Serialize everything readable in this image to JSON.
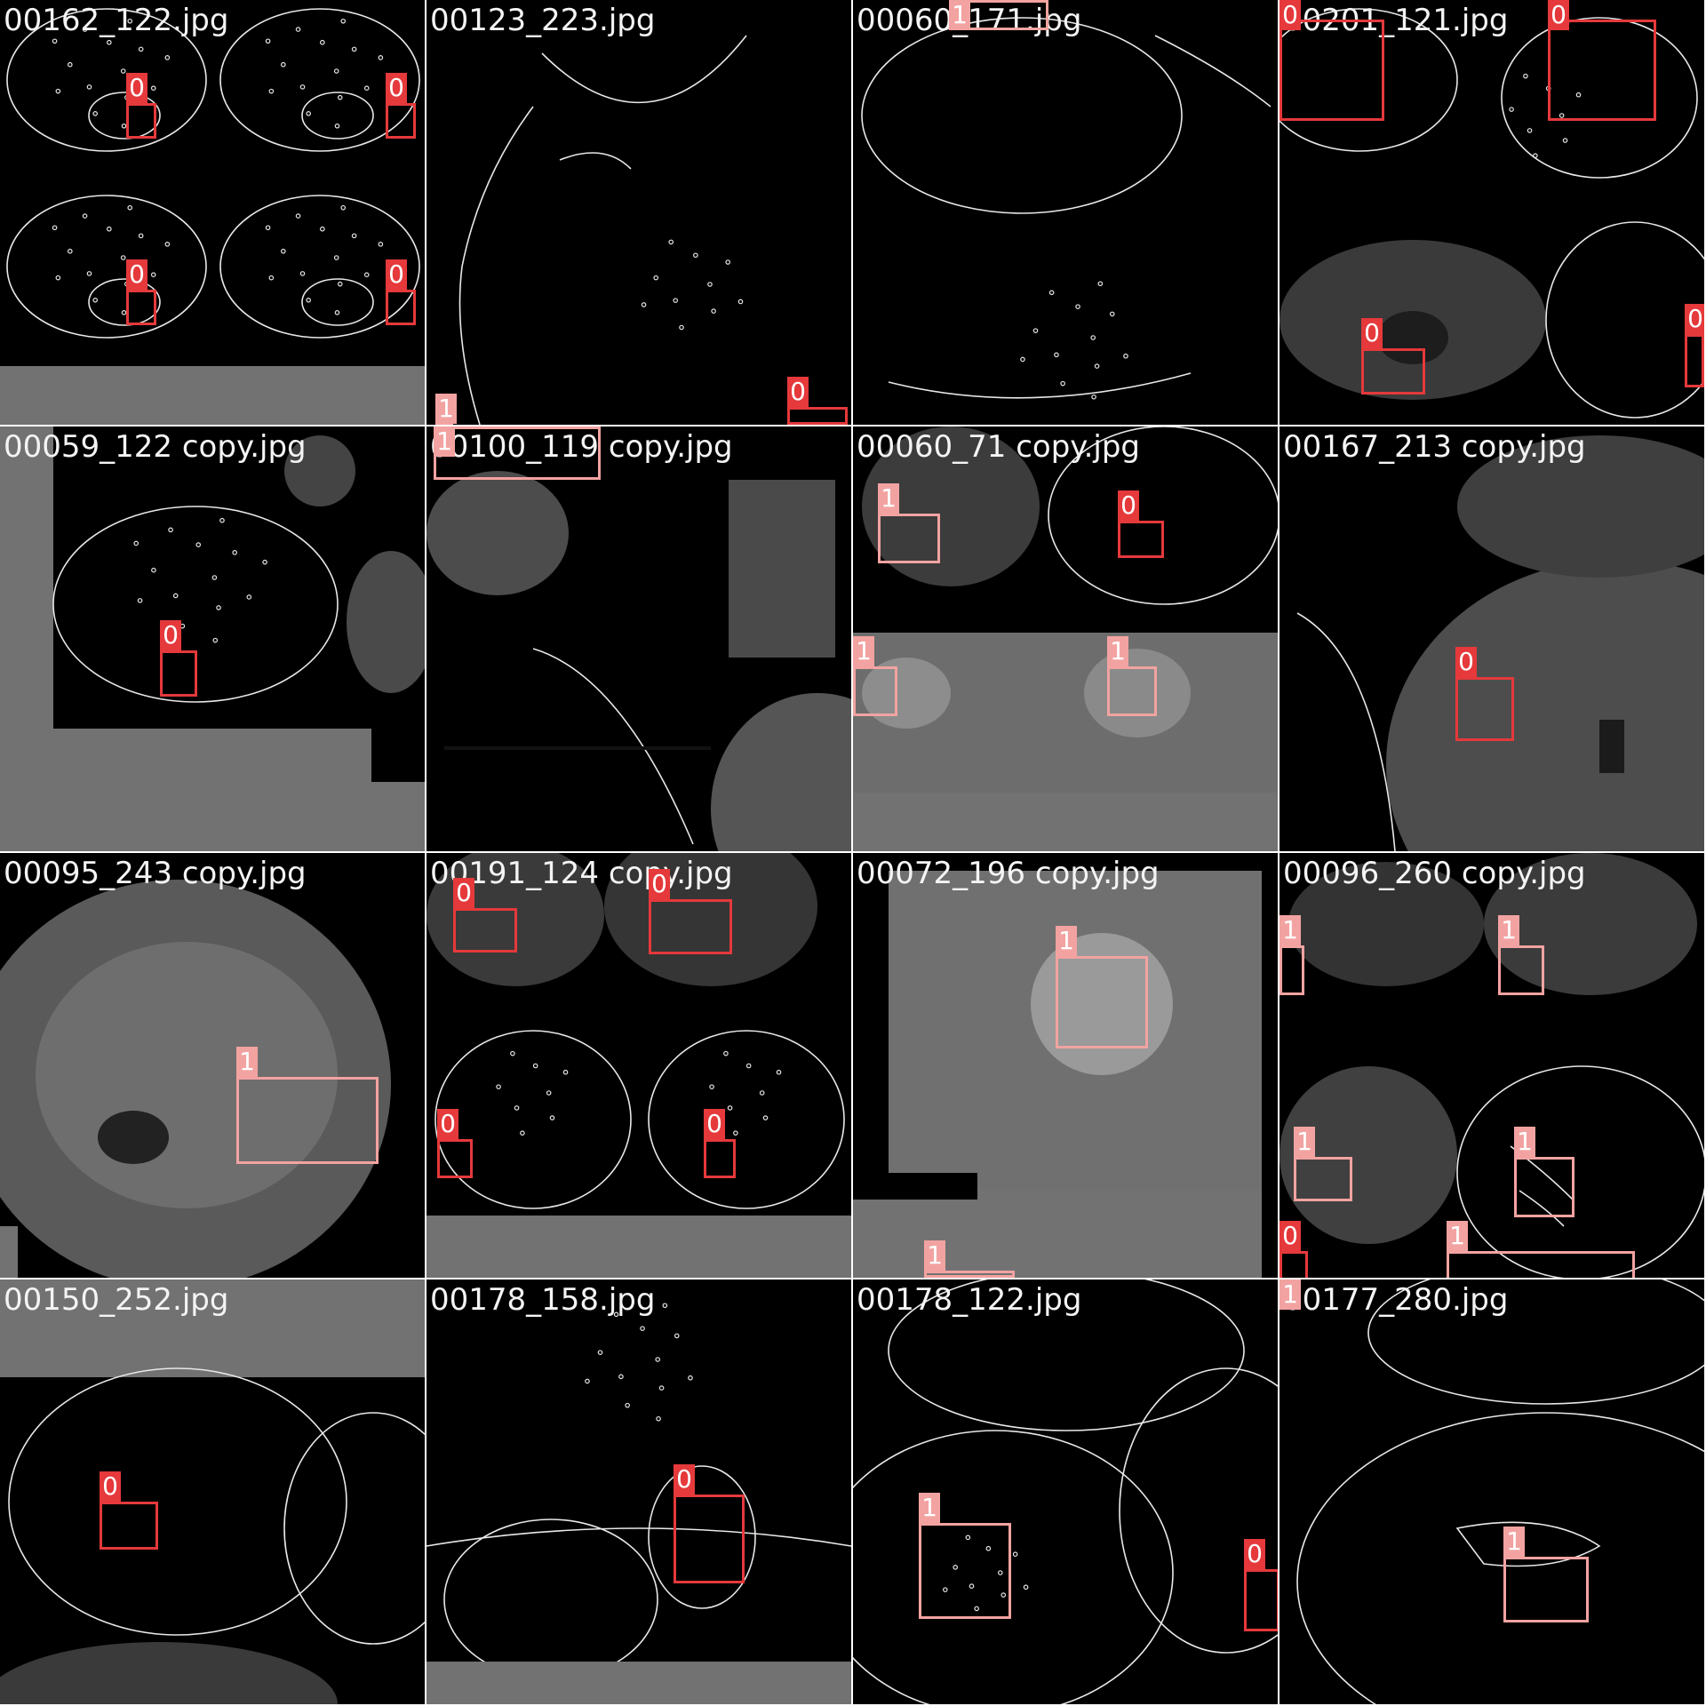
{
  "colors": {
    "class0": "#e5393b",
    "class1": "#f2a3a1",
    "gridline": "#ffffff",
    "pad": "#727272"
  },
  "tiles": [
    {
      "label": "00162_122.jpg",
      "kind": "edge-brain-quad",
      "boxes": [
        {
          "cls": "0"
        },
        {
          "cls": "0"
        },
        {
          "cls": "0"
        },
        {
          "cls": "0"
        }
      ]
    },
    {
      "label": "00123_223.jpg",
      "kind": "edge-brain-sagittal",
      "boxes": [
        {
          "cls": "1"
        },
        {
          "cls": "0"
        }
      ]
    },
    {
      "label": "00060_171.jpg",
      "kind": "edge-brain-top",
      "boxes": [
        {
          "cls": "1"
        }
      ]
    },
    {
      "label": "00201_121.jpg",
      "kind": "mixed",
      "boxes": [
        {
          "cls": "0"
        },
        {
          "cls": "0"
        },
        {
          "cls": "0"
        },
        {
          "cls": "0"
        }
      ]
    },
    {
      "label": "00059_122 copy.jpg",
      "kind": "edge-brain-axial",
      "boxes": [
        {
          "cls": "0"
        }
      ]
    },
    {
      "label": "00100_119 copy.jpg",
      "kind": "gray-blur",
      "boxes": [
        {
          "cls": "1"
        }
      ]
    },
    {
      "label": "00060_71 copy.jpg",
      "kind": "gray-mixed",
      "boxes": [
        {
          "cls": "1"
        },
        {
          "cls": "0"
        },
        {
          "cls": "1"
        },
        {
          "cls": "1"
        }
      ]
    },
    {
      "label": "00167_213 copy.jpg",
      "kind": "gray-sagittal",
      "boxes": [
        {
          "cls": "0"
        }
      ]
    },
    {
      "label": "00095_243 copy.jpg",
      "kind": "gray-sagittal-big",
      "boxes": [
        {
          "cls": "1"
        }
      ]
    },
    {
      "label": "00191_124 copy.jpg",
      "kind": "mixed-quad",
      "boxes": [
        {
          "cls": "0"
        },
        {
          "cls": "0"
        },
        {
          "cls": "0"
        },
        {
          "cls": "0"
        }
      ]
    },
    {
      "label": "00072_196 copy.jpg",
      "kind": "gray-coronal",
      "boxes": [
        {
          "cls": "1"
        },
        {
          "cls": "1"
        }
      ]
    },
    {
      "label": "00096_260 copy.jpg",
      "kind": "mixed-quad2",
      "boxes": [
        {
          "cls": "1"
        },
        {
          "cls": "1"
        },
        {
          "cls": "1"
        },
        {
          "cls": "1"
        },
        {
          "cls": "0"
        },
        {
          "cls": "1"
        }
      ]
    },
    {
      "label": "00150_252.jpg",
      "kind": "edge-coronal",
      "boxes": [
        {
          "cls": "0"
        }
      ]
    },
    {
      "label": "00178_158.jpg",
      "kind": "edge-axial-low",
      "boxes": [
        {
          "cls": "0"
        }
      ]
    },
    {
      "label": "00178_122.jpg",
      "kind": "edge-sagittal",
      "boxes": [
        {
          "cls": "1"
        },
        {
          "cls": "0"
        }
      ]
    },
    {
      "label": "00177_280.jpg",
      "kind": "edge-sagittal2",
      "boxes": [
        {
          "cls": "1"
        },
        {
          "cls": "1"
        }
      ]
    }
  ]
}
